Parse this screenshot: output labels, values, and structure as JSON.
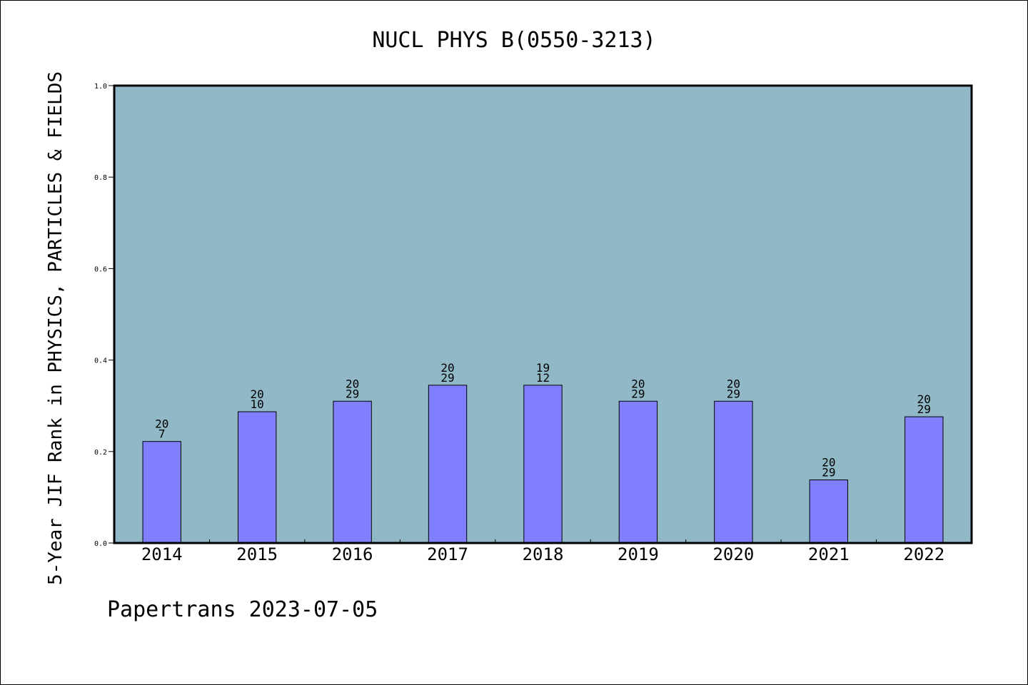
{
  "chart_data": {
    "type": "bar",
    "title": "NUCL PHYS B(0550-3213)",
    "xlabel": "",
    "ylabel": "5-Year JIF Rank in PHYSICS, PARTICLES & FIELDS",
    "ylim": [
      0,
      1.0
    ],
    "yticks": [
      "0.0",
      "0.2",
      "0.4",
      "0.6",
      "0.8",
      "1.0"
    ],
    "grid": false,
    "categories": [
      "2014",
      "2015",
      "2016",
      "2017",
      "2018",
      "2019",
      "2020",
      "2021",
      "2022"
    ],
    "values": [
      0.222,
      0.287,
      0.31,
      0.345,
      0.345,
      0.31,
      0.31,
      0.138,
      0.276
    ],
    "bar_labels": [
      [
        "20",
        "7"
      ],
      [
        "20",
        "10"
      ],
      [
        "20",
        "29"
      ],
      [
        "20",
        "29"
      ],
      [
        "19",
        "12"
      ],
      [
        "20",
        "29"
      ],
      [
        "20",
        "29"
      ],
      [
        "20",
        "29"
      ],
      [
        "20",
        "29"
      ]
    ],
    "colors": {
      "plot_background": "#90b8c6",
      "bar_fill": "#8080ff",
      "bar_edge": "#000000"
    }
  },
  "footer": "Papertrans 2023-07-05"
}
